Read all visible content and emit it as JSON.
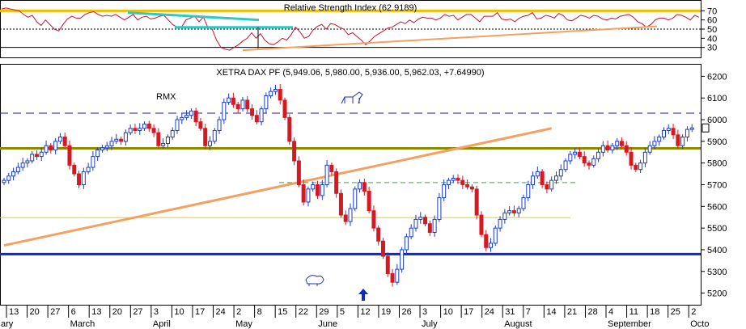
{
  "chart_data": [
    {
      "type": "line",
      "title": "Relative Strength Index (62.9189)",
      "ylim": [
        20,
        80
      ],
      "y_ticks": [
        70,
        60,
        50,
        40,
        30
      ],
      "levels": [
        70,
        50,
        30
      ],
      "series": [
        {
          "values": [
            72,
            73,
            72,
            71,
            70,
            66,
            63,
            65,
            58,
            54,
            60,
            55,
            50,
            48,
            55,
            61,
            64,
            62,
            62,
            66,
            68,
            69,
            66,
            64,
            65,
            64,
            66,
            63,
            60,
            63,
            66,
            60,
            63,
            64,
            61,
            62,
            64,
            65,
            60,
            55,
            52,
            52,
            60,
            62,
            64,
            58,
            63,
            52,
            50,
            38,
            30,
            28,
            27,
            30,
            33,
            37,
            40,
            46,
            40,
            45,
            38,
            34,
            33,
            36,
            40,
            38,
            44,
            52,
            47,
            40,
            42,
            49,
            53,
            55,
            50,
            56,
            55,
            52,
            50,
            44,
            46,
            42,
            38,
            33,
            37,
            42,
            45,
            48,
            51,
            52,
            55,
            58,
            56,
            60,
            57,
            61,
            63,
            62,
            62,
            60,
            62,
            66,
            64,
            65,
            60,
            63,
            66,
            66,
            62,
            58,
            64,
            64,
            64,
            68,
            61,
            60,
            61,
            58,
            62,
            64,
            65,
            68,
            61,
            62,
            65,
            64,
            62,
            67,
            65,
            60,
            59,
            62,
            65,
            64,
            62,
            65,
            64,
            61,
            60,
            62,
            61,
            64,
            65,
            66,
            63,
            58,
            56,
            52,
            55,
            60,
            62,
            62,
            60,
            62,
            66,
            65,
            63,
            60,
            65,
            63
          ]
        }
      ],
      "trendlines_from": "RSI trendlines"
    },
    {
      "type": "candlestick",
      "title": "XETRA DAX PF (5,949.06, 5,980.00, 5,936.00, 5,962.03, +7.64990)",
      "ylim": [
        5150,
        6250
      ],
      "y_ticks": [
        6200,
        6100,
        6000,
        5900,
        5800,
        5700,
        5600,
        5500,
        5400,
        5300,
        5200
      ],
      "x_ticks": [
        "13",
        "20",
        "27",
        "6",
        "13",
        "20",
        "27",
        "3",
        "10",
        "17",
        "24",
        "2",
        "8",
        "15",
        "22",
        "29",
        "5",
        "12",
        "19",
        "26",
        "3",
        "10",
        "17",
        "24",
        "31",
        "7",
        "14",
        "21",
        "28",
        "4",
        "11",
        "18",
        "25",
        "2"
      ],
      "months": [
        "ary",
        "March",
        "April",
        "May",
        "June",
        "July",
        "August",
        "September",
        "Octo"
      ],
      "annotations": [
        "RMX"
      ],
      "levels": [
        {
          "value": 6030,
          "style": "dashed",
          "color": "#1a1aa0"
        },
        {
          "value": 5868,
          "style": "solid",
          "color": "#8b8b00"
        },
        {
          "value": 5710,
          "style": "dashed",
          "color": "#30b030"
        },
        {
          "value": 5548,
          "style": "solid",
          "color": "#f0d000"
        },
        {
          "value": 5380,
          "style": "solid",
          "color": "#1028c8"
        }
      ],
      "trend": {
        "from": [
          0,
          5420
        ],
        "to": [
          117,
          5960
        ],
        "color": "#f4a060"
      },
      "closes": [
        5720,
        5740,
        5760,
        5780,
        5800,
        5810,
        5840,
        5830,
        5850,
        5880,
        5860,
        5900,
        5920,
        5880,
        5790,
        5750,
        5700,
        5760,
        5780,
        5830,
        5860,
        5870,
        5880,
        5900,
        5910,
        5900,
        5940,
        5960,
        5950,
        5960,
        5980,
        5960,
        5940,
        5880,
        5890,
        5920,
        5950,
        6000,
        6010,
        6020,
        6040,
        5990,
        5960,
        5880,
        5900,
        5950,
        6000,
        6080,
        6100,
        6070,
        6050,
        6090,
        6050,
        6020,
        5990,
        6050,
        6110,
        6130,
        6140,
        6090,
        6010,
        5900,
        5810,
        5700,
        5620,
        5680,
        5700,
        5650,
        5700,
        5790,
        5760,
        5660,
        5560,
        5530,
        5590,
        5680,
        5710,
        5670,
        5580,
        5500,
        5440,
        5370,
        5290,
        5250,
        5310,
        5400,
        5460,
        5500,
        5540,
        5550,
        5520,
        5480,
        5540,
        5640,
        5700,
        5720,
        5730,
        5720,
        5700,
        5690,
        5680,
        5560,
        5470,
        5410,
        5430,
        5500,
        5540,
        5570,
        5580,
        5570,
        5590,
        5640,
        5700,
        5740,
        5760,
        5700,
        5680,
        5720,
        5740,
        5770,
        5810,
        5840,
        5850,
        5830,
        5800,
        5790,
        5820,
        5850,
        5880,
        5860,
        5880,
        5900,
        5880,
        5850,
        5790,
        5770,
        5800,
        5850,
        5880,
        5900,
        5920,
        5950,
        5960,
        5930,
        5880,
        5920,
        5955,
        5962
      ],
      "last_bar_label": "5,962.03"
    }
  ]
}
